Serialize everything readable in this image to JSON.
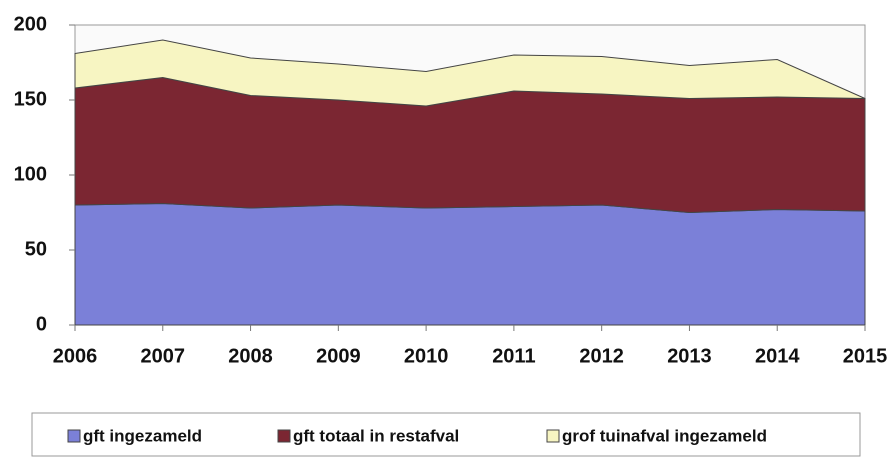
{
  "chart_data": {
    "type": "stacked-area",
    "categories": [
      "2006",
      "2007",
      "2008",
      "2009",
      "2010",
      "2011",
      "2012",
      "2013",
      "2014",
      "2015"
    ],
    "series": [
      {
        "name": "gft ingezameld",
        "color": "#7b80d8",
        "values": [
          80,
          81,
          78,
          80,
          78,
          79,
          80,
          75,
          77,
          76
        ]
      },
      {
        "name": "gft totaal in restafval",
        "color": "#7b2632",
        "values": [
          78,
          84,
          75,
          70,
          68,
          77,
          74,
          76,
          75,
          75
        ]
      },
      {
        "name": "grof tuinafval ingezameld",
        "color": "#f7f5c2",
        "values": [
          23,
          25,
          25,
          24,
          23,
          24,
          25,
          22,
          25,
          0
        ]
      }
    ],
    "ylim": [
      0,
      200
    ],
    "yticks": [
      0,
      50,
      100,
      150,
      200
    ],
    "grid": false,
    "legend": "bottom"
  }
}
